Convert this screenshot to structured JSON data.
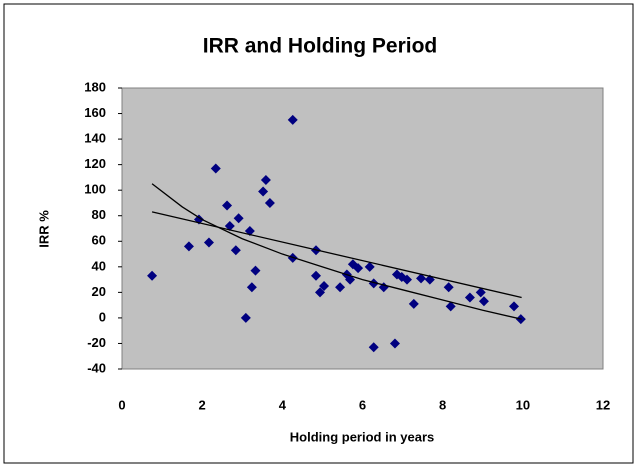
{
  "chart_data": {
    "type": "scatter",
    "title": "IRR and Holding Period",
    "x_label": "Holding period in years",
    "y_label": "IRR %",
    "series": [
      {
        "color": "#000080",
        "x": [
          0.75,
          1.67,
          1.92,
          2.17,
          2.34,
          2.62,
          2.69,
          2.84,
          2.91,
          3.09,
          3.19,
          3.52,
          3.59,
          3.69,
          3.33,
          3.24,
          4.26,
          4.26,
          4.84,
          4.84,
          4.94,
          5.04,
          5.44,
          5.61,
          5.69,
          5.76,
          5.89,
          6.18,
          6.28,
          6.28,
          6.53,
          6.81,
          6.86,
          6.98,
          7.11,
          7.28,
          7.46,
          7.68,
          8.15,
          8.2,
          8.68,
          8.95,
          9.03,
          9.78,
          9.95
        ],
        "values": [
          33,
          56,
          77,
          59,
          117,
          88,
          72,
          53,
          78,
          0,
          68,
          99,
          108,
          90,
          37,
          24,
          47,
          155,
          53,
          33,
          20,
          25,
          24,
          34,
          30,
          42,
          39,
          40,
          27,
          -23,
          24,
          -20,
          34,
          32,
          30,
          11,
          31,
          30,
          24,
          9,
          16,
          20,
          13,
          9,
          -1
        ]
      }
    ],
    "trendlines": [
      {
        "color": "#000000",
        "x": [
          0.75,
          9.97
        ],
        "values": [
          83,
          16
        ]
      },
      {
        "color": "#000000",
        "x": [
          0.75,
          1.5,
          2,
          3,
          4,
          5,
          6,
          7,
          8,
          9,
          9.97
        ],
        "values": [
          105,
          87,
          77,
          62,
          50,
          40,
          30,
          22,
          14,
          6,
          -1
        ]
      }
    ],
    "xlim": [
      0,
      12
    ],
    "xticks": [
      0,
      2,
      4,
      6,
      8,
      10,
      12
    ],
    "ylim": [
      -40,
      180
    ],
    "yticks": [
      -40,
      -20,
      0,
      20,
      40,
      60,
      80,
      100,
      120,
      140,
      160,
      180
    ],
    "plot_background": "#c0c0c0",
    "grid": false
  }
}
